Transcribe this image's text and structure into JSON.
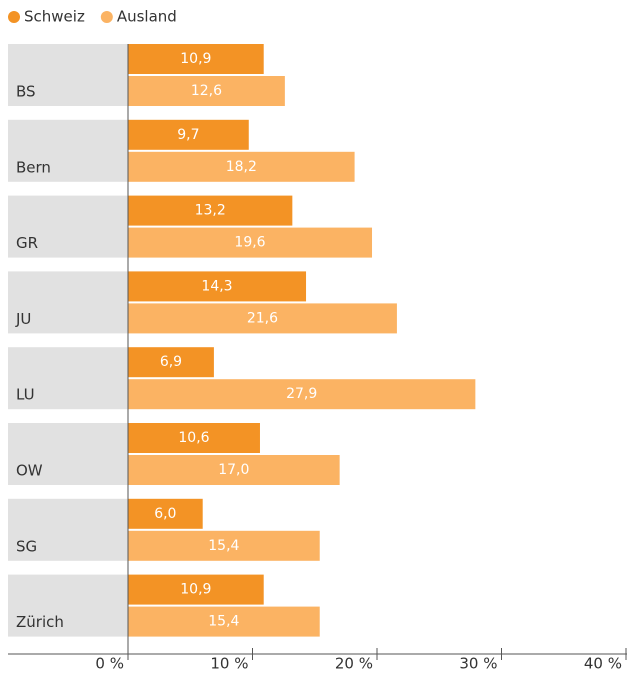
{
  "chart_data": {
    "type": "bar",
    "orientation": "horizontal",
    "categories": [
      "BS",
      "Bern",
      "GR",
      "JU",
      "LU",
      "OW",
      "SG",
      "Zürich"
    ],
    "series": [
      {
        "name": "Schweiz",
        "color": "#f39325",
        "values": [
          10.9,
          9.7,
          13.2,
          14.3,
          6.9,
          10.6,
          6.0,
          10.9
        ],
        "value_labels": [
          "10,9",
          "9,7",
          "13,2",
          "14,3",
          "6,9",
          "10,6",
          "6,0",
          "10,9"
        ]
      },
      {
        "name": "Ausland",
        "color": "#fbb363",
        "values": [
          12.6,
          18.2,
          19.6,
          21.6,
          27.9,
          17.0,
          15.4,
          15.4
        ],
        "value_labels": [
          "12,6",
          "18,2",
          "19,6",
          "21,6",
          "27,9",
          "17,0",
          "15,4",
          "15,4"
        ]
      }
    ],
    "xlim": [
      0,
      40
    ],
    "xticks": [
      {
        "value": 0,
        "label": "0 %"
      },
      {
        "value": 10,
        "label": "10 %"
      },
      {
        "value": 20,
        "label": "20 %"
      },
      {
        "value": 30,
        "label": "30 %"
      },
      {
        "value": 40,
        "label": "40 %"
      }
    ],
    "legend": "top-left"
  }
}
